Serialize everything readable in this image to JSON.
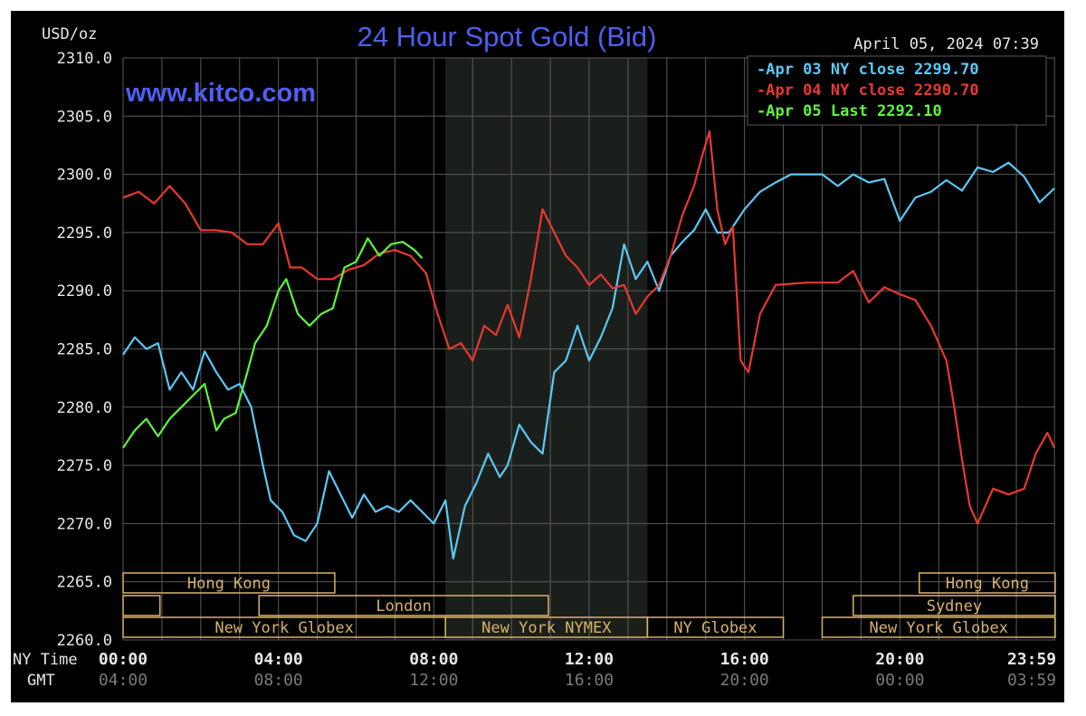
{
  "chart_data": {
    "type": "line",
    "title": "24 Hour Spot Gold (Bid)",
    "ylabel": "USD/oz",
    "ylim": [
      2260,
      2310
    ],
    "yticks": [
      2310,
      2305,
      2300,
      2295,
      2290,
      2285,
      2280,
      2275,
      2270,
      2265,
      2260
    ],
    "ytick_labels": [
      "2310.0",
      "2305.0",
      "2300.0",
      "2295.0",
      "2290.0",
      "2285.0",
      "2280.0",
      "2275.0",
      "2270.0",
      "2265.0",
      "2260.0"
    ],
    "xlim_hours": [
      0,
      24
    ],
    "timestamp": "April 05, 2024 07:39",
    "watermark": "www.kitco.com",
    "row_labels": {
      "ny": "NY Time",
      "gmt": "GMT"
    },
    "ny_time_ticks": [
      "00:00",
      "04:00",
      "08:00",
      "12:00",
      "16:00",
      "20:00",
      "23:59"
    ],
    "gmt_ticks": [
      "04:00",
      "08:00",
      "12:00",
      "16:00",
      "20:00",
      "00:00",
      "03:59"
    ],
    "tick_hours": [
      0,
      4,
      8,
      12,
      16,
      20,
      23.98
    ],
    "grid": true,
    "legend_position": "top-right",
    "shaded_region_hours": [
      8.3,
      13.5
    ],
    "sessions": [
      {
        "name": "Hong Kong",
        "start": 0,
        "end": 5.45,
        "row": 1
      },
      {
        "name": "",
        "start": 0,
        "end": 0.95,
        "row": 2
      },
      {
        "name": "London",
        "start": 3.5,
        "end": 10.95,
        "row": 2
      },
      {
        "name": "New York Globex",
        "start": 0,
        "end": 8.3,
        "row": 3
      },
      {
        "name": "New York NYMEX",
        "start": 8.3,
        "end": 13.5,
        "row": 3
      },
      {
        "name": "NY Globex",
        "start": 13.5,
        "end": 17.0,
        "row": 3
      },
      {
        "name": "Hong Kong",
        "start": 20.5,
        "end": 24,
        "row": 1
      },
      {
        "name": "Sydney",
        "start": 18.8,
        "end": 24,
        "row": 2
      },
      {
        "name": "New York Globex",
        "start": 18.0,
        "end": 24,
        "row": 3
      }
    ],
    "series": [
      {
        "name": "Apr 03 NY close 2299.70",
        "color": "#5bc8f5",
        "x": [
          0,
          0.3,
          0.6,
          0.9,
          1.2,
          1.5,
          1.8,
          2.1,
          2.4,
          2.7,
          3.0,
          3.3,
          3.6,
          3.8,
          4.1,
          4.4,
          4.7,
          5.0,
          5.3,
          5.6,
          5.9,
          6.2,
          6.5,
          6.8,
          7.1,
          7.4,
          7.7,
          8.0,
          8.3,
          8.5,
          8.8,
          9.1,
          9.4,
          9.7,
          9.9,
          10.2,
          10.5,
          10.8,
          11.1,
          11.4,
          11.7,
          12.0,
          12.3,
          12.6,
          12.9,
          13.2,
          13.5,
          13.8,
          14.1,
          14.4,
          14.7,
          15.0,
          15.3,
          15.6,
          16.0,
          16.4,
          16.8,
          17.2,
          17.6,
          18.0,
          18.4,
          18.8,
          19.2,
          19.6,
          20.0,
          20.4,
          20.8,
          21.2,
          21.6,
          22.0,
          22.4,
          22.8,
          23.2,
          23.6,
          23.98
        ],
        "y": [
          2284.5,
          2286,
          2285,
          2285.5,
          2281.5,
          2283,
          2281.5,
          2284.8,
          2283,
          2281.5,
          2282,
          2280,
          2275,
          2272,
          2271,
          2269,
          2268.5,
          2270,
          2274.5,
          2272.5,
          2270.5,
          2272.5,
          2271,
          2271.5,
          2271,
          2272,
          2271,
          2270,
          2272,
          2267,
          2271.5,
          2273.5,
          2276,
          2274,
          2275,
          2278.5,
          2277,
          2276,
          2283,
          2284,
          2287,
          2284,
          2286,
          2288.5,
          2294,
          2291,
          2292.5,
          2290,
          2293,
          2294.2,
          2295.2,
          2297,
          2295,
          2295,
          2297,
          2298.5,
          2299.3,
          2300,
          2300,
          2300,
          2299,
          2300,
          2299.3,
          2299.6,
          2296,
          2298,
          2298.5,
          2299.5,
          2298.6,
          2300.6,
          2300.2,
          2301,
          2299.8,
          2297.6,
          2298.8
        ]
      },
      {
        "name": "Apr 04 NY close 2290.70",
        "color": "#e8392f",
        "x": [
          0,
          0.4,
          0.8,
          1.2,
          1.6,
          2.0,
          2.4,
          2.8,
          3.2,
          3.6,
          4.0,
          4.3,
          4.6,
          5.0,
          5.4,
          5.8,
          6.2,
          6.6,
          7.0,
          7.4,
          7.8,
          8.1,
          8.4,
          8.7,
          9.0,
          9.3,
          9.6,
          9.9,
          10.2,
          10.5,
          10.8,
          11.1,
          11.4,
          11.7,
          12.0,
          12.3,
          12.6,
          12.9,
          13.2,
          13.5,
          13.8,
          14.1,
          14.4,
          14.7,
          14.9,
          15.1,
          15.3,
          15.5,
          15.7,
          15.9,
          16.1,
          16.4,
          16.8,
          17.2,
          17.6,
          18.0,
          18.4,
          18.8,
          19.2,
          19.6,
          20.0,
          20.4,
          20.8,
          21.2,
          21.4,
          21.6,
          21.8,
          22.0,
          22.4,
          22.8,
          23.2,
          23.5,
          23.8,
          23.98
        ],
        "y": [
          2298,
          2298.5,
          2297.5,
          2299,
          2297.5,
          2295.2,
          2295.2,
          2295.0,
          2294,
          2294,
          2295.8,
          2292,
          2292,
          2291,
          2291,
          2291.8,
          2292.2,
          2293.2,
          2293.5,
          2293.0,
          2291.5,
          2288,
          2285,
          2285.5,
          2284,
          2287,
          2286.2,
          2288.8,
          2286,
          2291,
          2297,
          2295,
          2293,
          2292,
          2290.5,
          2291.4,
          2290.2,
          2290.5,
          2288,
          2289.5,
          2290.5,
          2293,
          2296.5,
          2299,
          2301.5,
          2303.7,
          2297,
          2294,
          2295.5,
          2284,
          2283,
          2288,
          2290.5,
          2290.6,
          2290.7,
          2290.7,
          2290.7,
          2291.7,
          2289,
          2290.3,
          2289.7,
          2289.2,
          2287,
          2284,
          2280,
          2275.5,
          2271.5,
          2270,
          2273,
          2272.5,
          2273,
          2276,
          2277.8,
          2276.5
        ]
      },
      {
        "name": "Apr 05 Last 2292.10",
        "color": "#5ff53f",
        "x": [
          0,
          0.3,
          0.6,
          0.9,
          1.2,
          1.5,
          1.8,
          2.1,
          2.4,
          2.6,
          2.9,
          3.2,
          3.4,
          3.7,
          4.0,
          4.2,
          4.5,
          4.8,
          5.1,
          5.4,
          5.7,
          6.0,
          6.3,
          6.6,
          6.9,
          7.2,
          7.5,
          7.7
        ],
        "y": [
          2276.5,
          2278,
          2279,
          2277.5,
          2279,
          2280,
          2281,
          2282,
          2278,
          2279,
          2279.5,
          2283,
          2285.5,
          2287,
          2290,
          2291,
          2288,
          2287,
          2288,
          2288.5,
          2292,
          2292.5,
          2294.5,
          2293,
          2294,
          2294.2,
          2293.5,
          2292.8
        ]
      }
    ]
  },
  "colors": {
    "background": "#000000",
    "grid": "#5a5a5a",
    "title": "#4f5ff0",
    "text": "#e8e8e8",
    "dim_text": "#7a7a7a",
    "session_gold": "#d8b36b",
    "shade": "#1b1f1b"
  }
}
